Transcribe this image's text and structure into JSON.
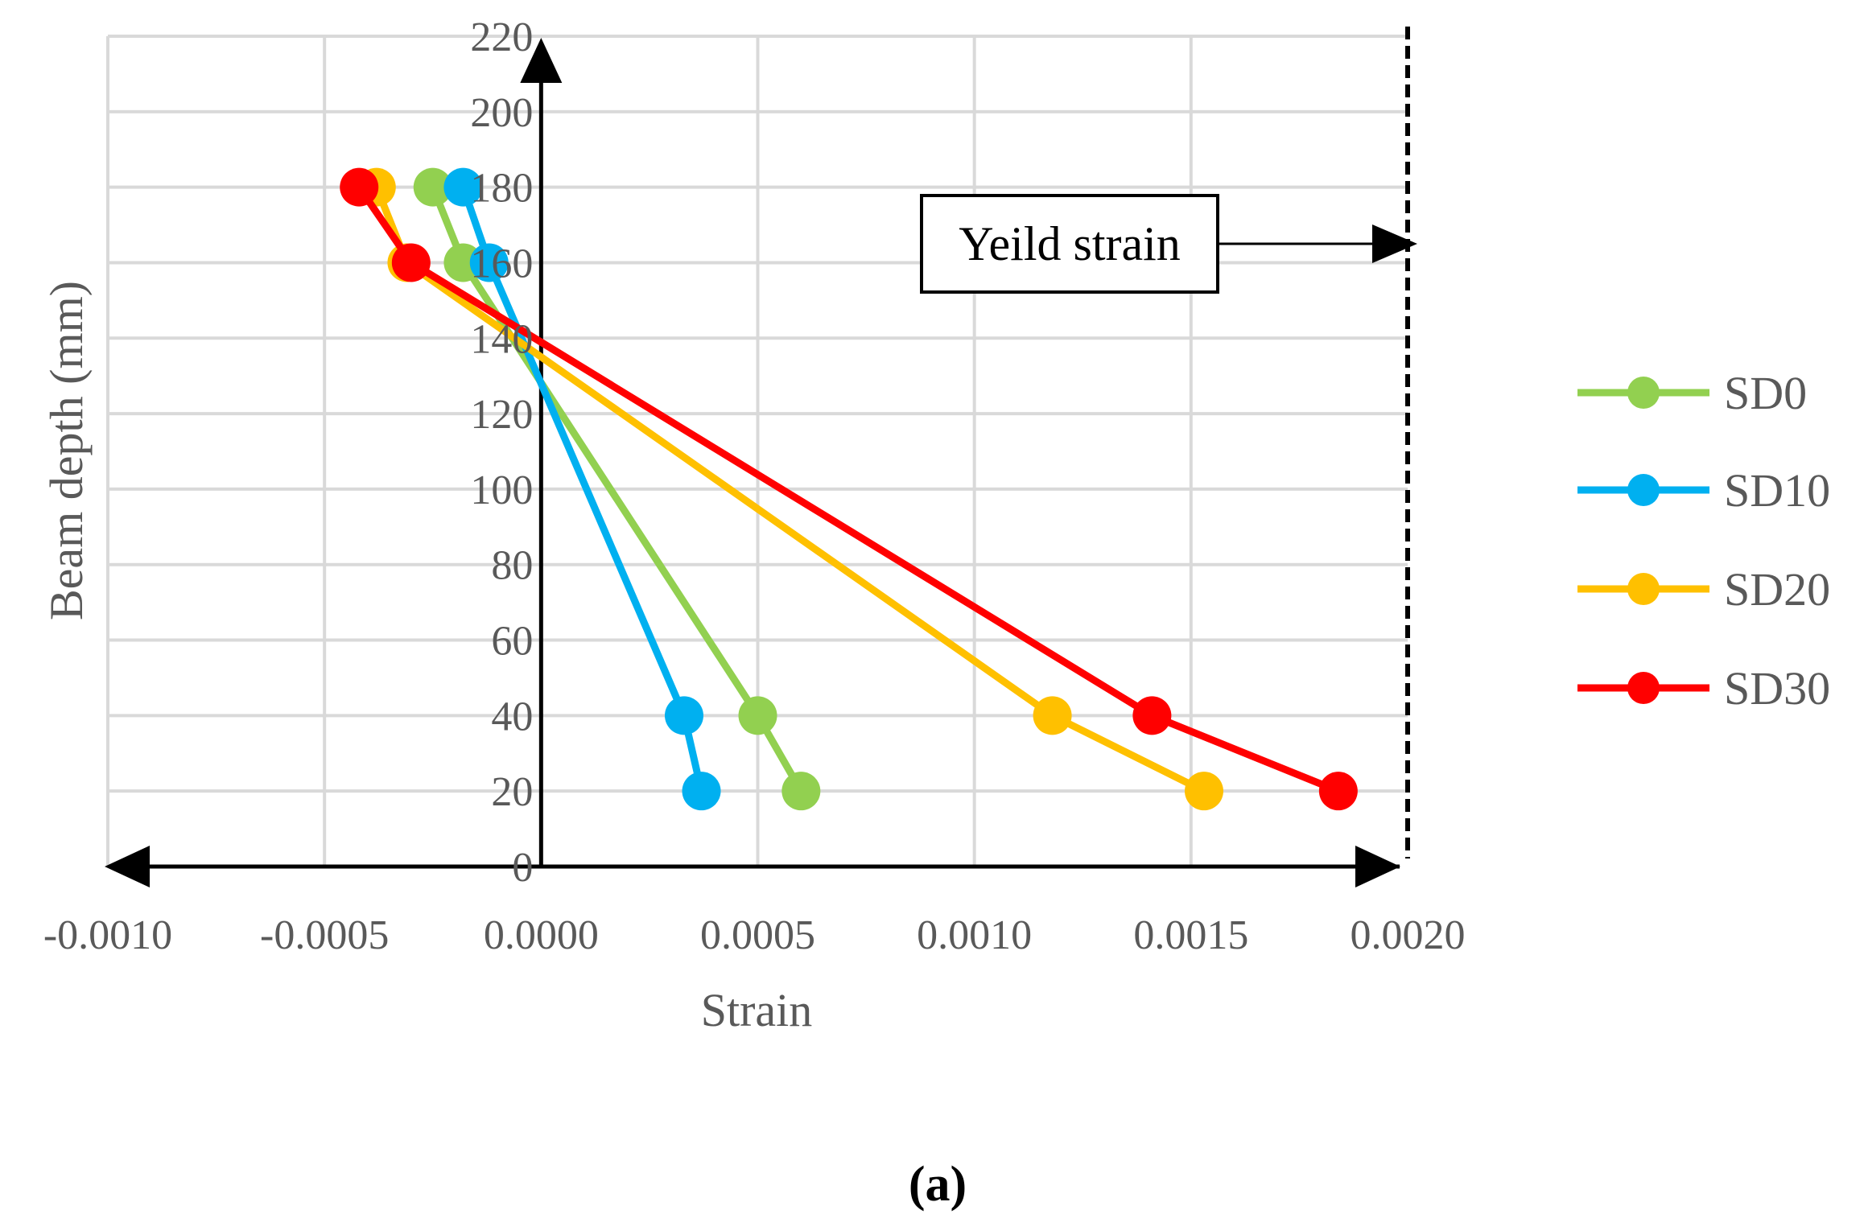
{
  "chart_data": {
    "type": "line",
    "title": "",
    "xlabel": "Strain",
    "ylabel": "Beam depth (mm)",
    "xlim": [
      -0.001,
      0.002
    ],
    "ylim": [
      0,
      220
    ],
    "x_ticks": [
      -0.001,
      -0.0005,
      0.0,
      0.0005,
      0.001,
      0.0015,
      0.002
    ],
    "x_tick_labels": [
      "-0.0010",
      "-0.0005",
      "0.0000",
      "0.0005",
      "0.0010",
      "0.0015",
      "0.0020"
    ],
    "y_ticks": [
      0,
      20,
      40,
      60,
      80,
      100,
      120,
      140,
      160,
      180,
      200,
      220
    ],
    "y_tick_labels": [
      "0",
      "20",
      "40",
      "60",
      "80",
      "100",
      "120",
      "140",
      "160",
      "180",
      "200",
      "220"
    ],
    "grid": true,
    "legend_position": "right",
    "series": [
      {
        "name": "SD0",
        "color": "#92D050",
        "x": [
          -0.00025,
          -0.00018,
          0.0005,
          0.0006
        ],
        "y": [
          180,
          160,
          40,
          20
        ]
      },
      {
        "name": "SD10",
        "color": "#00B0F0",
        "x": [
          -0.00018,
          -0.00012,
          0.00033,
          0.00037
        ],
        "y": [
          180,
          160,
          40,
          20
        ]
      },
      {
        "name": "SD20",
        "color": "#FFC000",
        "x": [
          -0.00038,
          -0.00031,
          0.00118,
          0.00153
        ],
        "y": [
          180,
          160,
          40,
          20
        ]
      },
      {
        "name": "SD30",
        "color": "#FF0000",
        "x": [
          -0.00042,
          -0.0003,
          0.00141,
          0.00184
        ],
        "y": [
          180,
          160,
          40,
          20
        ]
      }
    ],
    "reference_line": {
      "x": 0.002,
      "style": "dashed",
      "label": "Yeild strain",
      "label_y": 165
    },
    "caption": "(a)"
  }
}
